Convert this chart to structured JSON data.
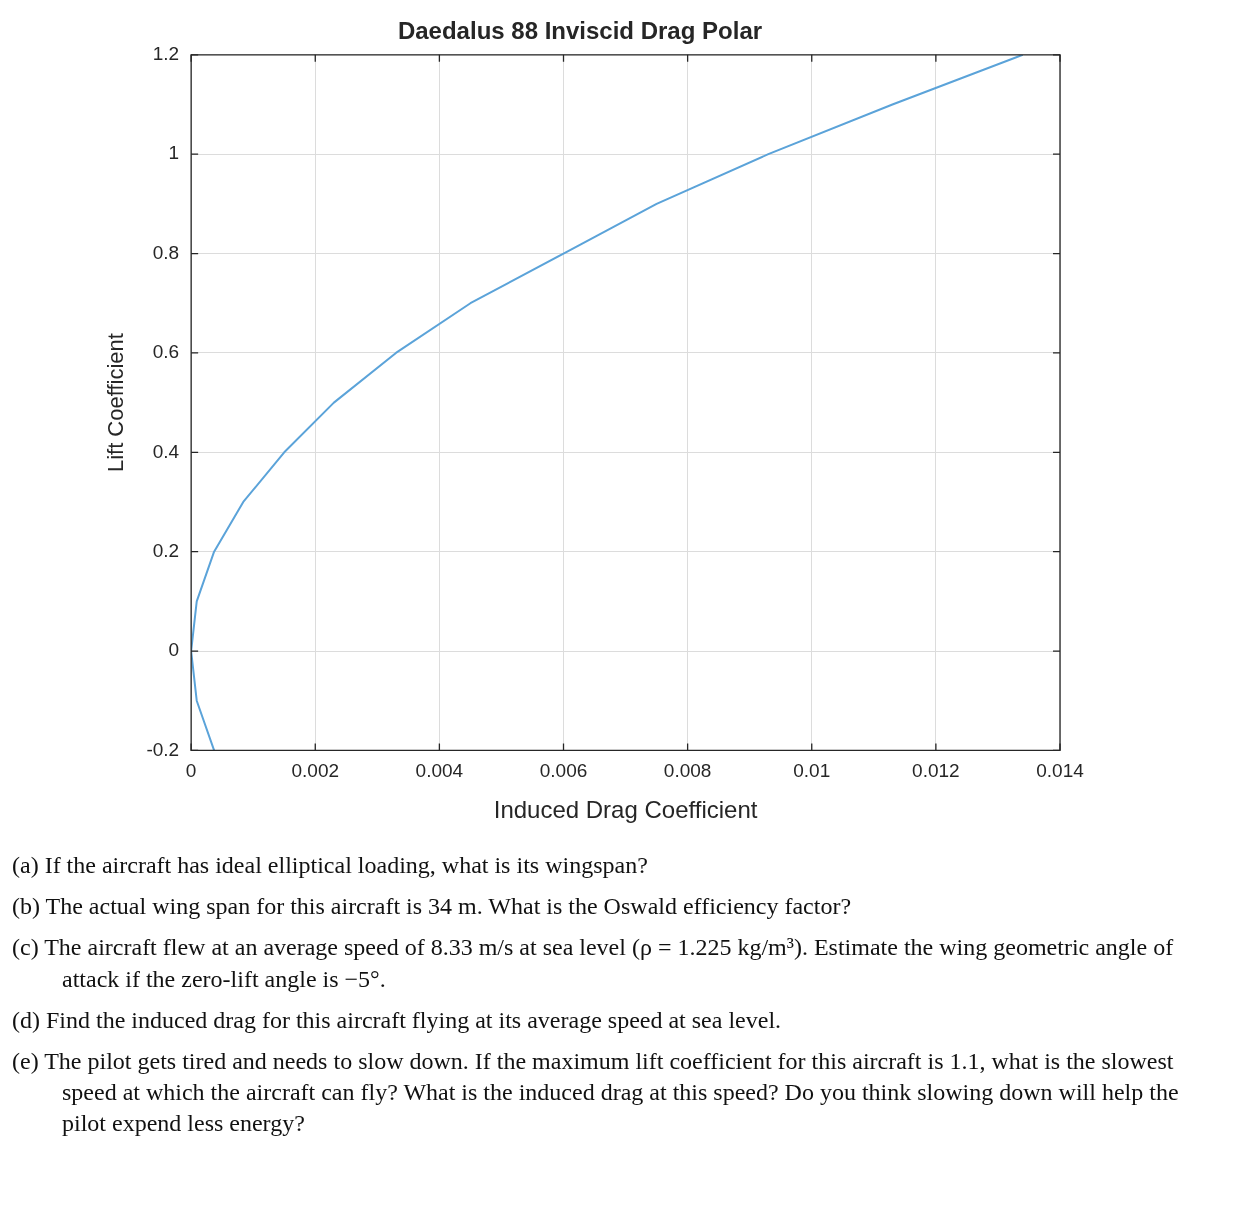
{
  "chart_data": {
    "type": "line",
    "title": "Daedalus 88 Inviscid Drag Polar",
    "xlabel": "Induced Drag Coefficient",
    "ylabel": "Lift Coefficient",
    "x": [
      0.00037,
      9e-05,
      0,
      9e-05,
      0.00037,
      0.00084,
      0.0015,
      0.0023,
      0.0033,
      0.0045,
      0.006,
      0.0075,
      0.0093,
      0.0113,
      0.0134
    ],
    "values": [
      -0.2,
      -0.1,
      0,
      0.1,
      0.2,
      0.3,
      0.4,
      0.5,
      0.6,
      0.7,
      0.8,
      0.9,
      1.0,
      1.1,
      1.2
    ],
    "color": "#5ba3d9",
    "xlim": [
      0,
      0.014
    ],
    "xticks": [
      0,
      0.002,
      0.004,
      0.006,
      0.008,
      0.01,
      0.012,
      0.014
    ],
    "ylim": [
      -0.2,
      1.2
    ],
    "yticks": [
      -0.2,
      0,
      0.2,
      0.4,
      0.6,
      0.8,
      1,
      1.2
    ],
    "grid": true,
    "annotations": [
      "(a) If the aircraft has ideal elliptical loading, what is its wingspan?",
      "(b) The actual wing span for this aircraft is 34 m. What is the Oswald efficiency factor?",
      "(c) The aircraft flew at an average speed of 8.33 m/s at sea level (ρ = 1.225 kg/m³). Estimate the wing geometric angle of attack if the zero-lift angle is −5°.",
      "(d) Find the induced drag for this aircraft flying at its average speed at sea level.",
      "(e) The pilot gets tired and needs to slow down. If the maximum lift coefficient for this aircraft is 1.1, what is the slowest speed at which the aircraft can fly? What is the induced drag at this speed? Do you think slowing down will help the pilot expend less energy?"
    ]
  }
}
